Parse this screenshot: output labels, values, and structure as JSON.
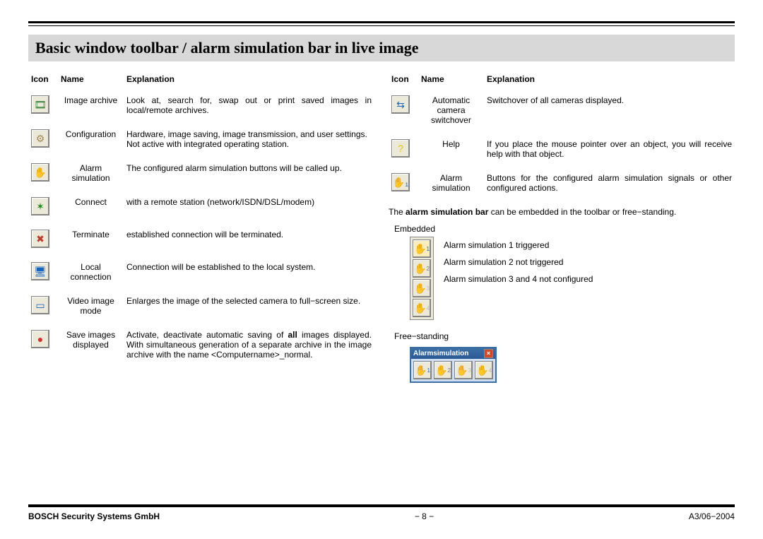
{
  "title": "Basic window toolbar / alarm simulation bar in live image",
  "headers": {
    "icon": "Icon",
    "name": "Name",
    "explanation": "Explanation"
  },
  "left_rows": [
    {
      "glyph": "🎞",
      "color": "#2e7d32",
      "name": "Image archive",
      "expl": "Look at, search for, swap out or print saved images in local/remote archives."
    },
    {
      "glyph": "⚙",
      "color": "#9e8a55",
      "name": "Configuration",
      "expl": "Hardware, image saving, image transmission, and user settings.\nNot active with integrated operating station."
    },
    {
      "glyph": "✋",
      "color": "#1565c0",
      "name": "Alarm simulation",
      "expl": "The configured alarm simulation buttons will be called up."
    },
    {
      "glyph": "✶",
      "color": "#1b8a1b",
      "name": "Connect",
      "expl": "with a remote station (network/ISDN/DSL/modem)"
    },
    {
      "glyph": "✖",
      "color": "#c0392b",
      "name": "Terminate",
      "expl": "established connection will be terminated."
    },
    {
      "glyph": "🖥",
      "color": "#1565c0",
      "name": "Local connection",
      "expl": "Connection will be established to the local system."
    },
    {
      "glyph": "▭",
      "color": "#1565c0",
      "name": "Video image mode",
      "expl": "Enlarges the image of the selected camera to full−screen size."
    },
    {
      "glyph": "●",
      "color": "#d32f2f",
      "name": "Save images displayed",
      "expl": "Activate, deactivate automatic saving of <b>all</b> images displayed. With simultaneous generation of a separate archive in the image archive with the name <Computername>_normal."
    }
  ],
  "right_rows": [
    {
      "glyph": "⇆",
      "color": "#1565c0",
      "name": "Automatic camera switchover",
      "expl": "Switchover of all cameras displayed."
    },
    {
      "glyph": "?",
      "color": "#e6c200",
      "name": "Help",
      "expl": "If you place the mouse pointer over an object, you will receive help with that object."
    },
    {
      "glyph": "✋₁",
      "color": "#1565c0",
      "name": "Alarm simulation",
      "expl": "Buttons for the configured alarm simulation signals or other configured actions."
    }
  ],
  "sim_note": "The <b>alarm simulation bar</b> can be embedded in the toolbar or free−standing.",
  "embed_label": "Embedded",
  "embed_texts": [
    "Alarm simulation 1 triggered",
    "Alarm simulation 2 not triggered",
    "Alarm simulation 3 and 4 not configured"
  ],
  "free_label": "Free−standing",
  "free_title": "Alarmsimulation",
  "footer": {
    "left": "BOSCH Security Systems GmbH",
    "center": "− 8 −",
    "right": "A3/06−2004"
  }
}
